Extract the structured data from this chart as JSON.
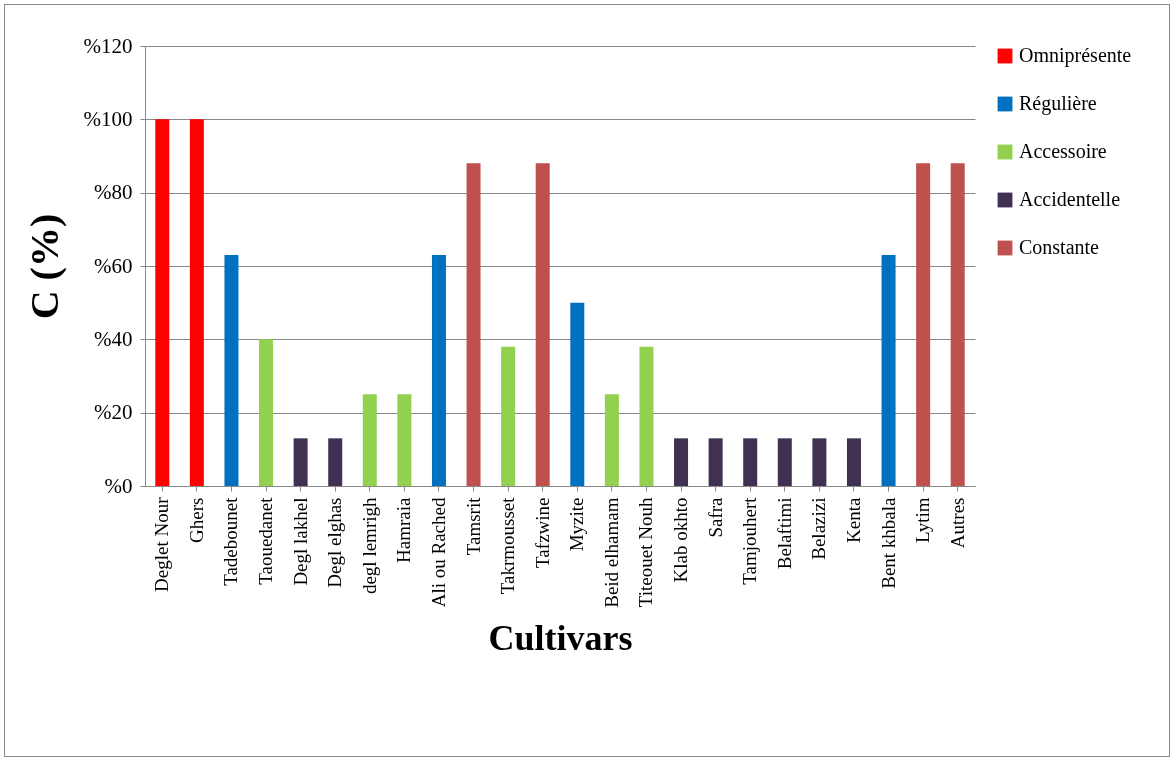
{
  "chart_data": {
    "type": "bar",
    "xlabel": "Cultivars",
    "ylabel": "C (%)",
    "categories": [
      "Deglet Nour",
      "Ghers",
      "Tadebounet",
      "Taouedanet",
      "Degl lakhel",
      "Degl elghas",
      "degl lemrigh",
      "Hamraia",
      "Ali ou Rached",
      "Tamsrit",
      "Takrmousset",
      "Tafzwine",
      "Myzite",
      "Beid elhamam",
      "Titeouet Nouh",
      "Klab okhto",
      "Safra",
      "Tamjouhert",
      "Belaftimi",
      "Belazizi",
      "Kenta",
      "Bent khbala",
      "Lytim",
      "Autres"
    ],
    "series": [
      {
        "name": "Omniprésente",
        "color": "#ff0000",
        "values": [
          100,
          100,
          null,
          null,
          null,
          null,
          null,
          null,
          null,
          null,
          null,
          null,
          null,
          null,
          null,
          null,
          null,
          null,
          null,
          null,
          null,
          null,
          null,
          null
        ]
      },
      {
        "name": "Régulière",
        "color": "#0070c0",
        "values": [
          null,
          null,
          63,
          null,
          null,
          null,
          null,
          null,
          63,
          null,
          null,
          null,
          50,
          null,
          null,
          null,
          null,
          null,
          null,
          null,
          null,
          63,
          null,
          null
        ]
      },
      {
        "name": "Accessoire",
        "color": "#92d050",
        "values": [
          null,
          null,
          null,
          40,
          null,
          null,
          25,
          25,
          null,
          null,
          38,
          null,
          null,
          25,
          38,
          null,
          null,
          null,
          null,
          null,
          null,
          null,
          null,
          null
        ]
      },
      {
        "name": "Accidentelle",
        "color": "#403152",
        "values": [
          null,
          null,
          null,
          null,
          13,
          13,
          null,
          null,
          null,
          null,
          null,
          null,
          null,
          null,
          null,
          13,
          13,
          13,
          13,
          13,
          13,
          null,
          null,
          null
        ]
      },
      {
        "name": "Constante",
        "color": "#c0504d",
        "values": [
          null,
          null,
          null,
          null,
          null,
          null,
          null,
          null,
          null,
          88,
          null,
          88,
          null,
          null,
          null,
          null,
          null,
          null,
          null,
          null,
          null,
          null,
          88,
          88
        ]
      }
    ],
    "ylim": [
      0,
      120
    ],
    "yticks": [
      {
        "value": 0,
        "label": "%0"
      },
      {
        "value": 20,
        "label": "%20"
      },
      {
        "value": 40,
        "label": "%40"
      },
      {
        "value": 60,
        "label": "%60"
      },
      {
        "value": 80,
        "label": "%80"
      },
      {
        "value": 100,
        "label": "%100"
      },
      {
        "value": 120,
        "label": "%120"
      }
    ],
    "grid": "y",
    "legend": "right"
  }
}
